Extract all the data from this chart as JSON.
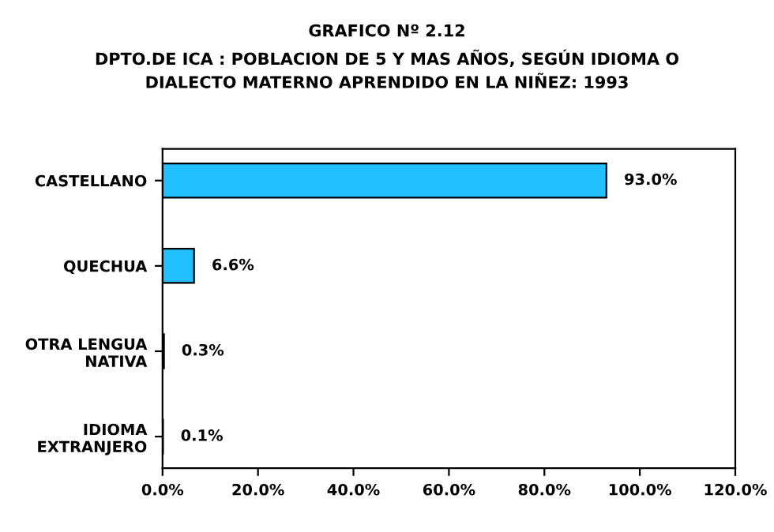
{
  "chart_data": {
    "type": "bar",
    "orientation": "horizontal",
    "title": "GRAFICO Nº 2.12",
    "subtitle": "DPTO.DE ICA : POBLACION DE 5 Y MAS AÑOS, SEGÚN IDIOMA O\nDIALECTO MATERNO APRENDIDO EN LA NIÑEZ: 1993",
    "categories": [
      "CASTELLANO",
      "QUECHUA",
      "OTRA LENGUA\nNATIVA",
      "IDIOMA\nEXTRANJERO"
    ],
    "values": [
      93.0,
      6.6,
      0.3,
      0.1
    ],
    "value_labels": [
      "93.0%",
      "6.6%",
      "0.3%",
      "0.1%"
    ],
    "color": "#22c0ff",
    "xlim": [
      0,
      120
    ],
    "xticks": [
      {
        "value": 0,
        "label": "0.0%"
      },
      {
        "value": 20,
        "label": "20.0%"
      },
      {
        "value": 40,
        "label": "40.0%"
      },
      {
        "value": 60,
        "label": "60.0%"
      },
      {
        "value": 80,
        "label": "80.0%"
      },
      {
        "value": 100,
        "label": "100.0%"
      },
      {
        "value": 120,
        "label": "120.0%"
      }
    ],
    "grid": false
  }
}
